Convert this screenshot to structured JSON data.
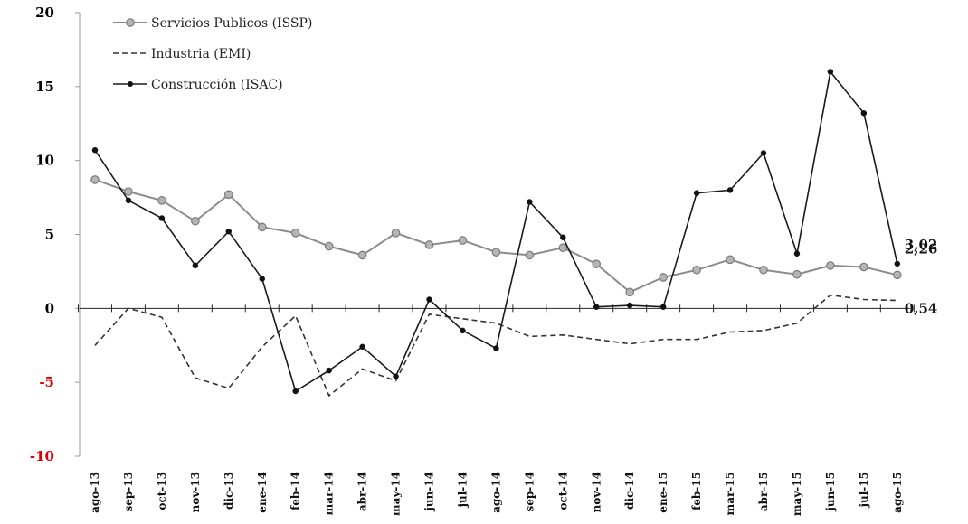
{
  "chart_data": {
    "type": "line",
    "title": "",
    "xlabel": "",
    "ylabel": "",
    "ylim": [
      -10,
      20
    ],
    "yticks": [
      {
        "value": 20,
        "label": "20",
        "color": "#000000"
      },
      {
        "value": 15,
        "label": "15",
        "color": "#000000"
      },
      {
        "value": 10,
        "label": "10",
        "color": "#000000"
      },
      {
        "value": 5,
        "label": "5",
        "color": "#000000"
      },
      {
        "value": 0,
        "label": "0",
        "color": "#000000"
      },
      {
        "value": -5,
        "label": "-5",
        "color": "#e00000"
      },
      {
        "value": -10,
        "label": "-10",
        "color": "#e00000"
      }
    ],
    "categories": [
      "ago-13",
      "sep-13",
      "oct-13",
      "nov-13",
      "dic-13",
      "ene-14",
      "feb-14",
      "mar-14",
      "abr-14",
      "may-14",
      "jun-14",
      "jul-14",
      "ago-14",
      "sep-14",
      "oct-14",
      "nov-14",
      "dic-14",
      "ene-15",
      "feb-15",
      "mar-15",
      "abr-15",
      "may-15",
      "jun-15",
      "jul-15",
      "ago-15"
    ],
    "grid": false,
    "legend_position": "top-left",
    "series": [
      {
        "name": "Servicios Publicos (ISSP)",
        "style": "solid-circle-markers",
        "color": "#8c8c8c",
        "values": [
          8.7,
          7.9,
          7.3,
          5.9,
          7.7,
          5.5,
          5.1,
          4.2,
          3.6,
          5.1,
          4.3,
          4.6,
          3.8,
          3.6,
          4.1,
          3.0,
          1.1,
          2.1,
          2.6,
          3.3,
          2.6,
          2.3,
          2.9,
          2.8,
          2.26
        ]
      },
      {
        "name": "Industria (EMI)",
        "style": "dashed",
        "color": "#333333",
        "values": [
          -2.5,
          0.0,
          -0.6,
          -4.7,
          -5.4,
          -2.6,
          -0.5,
          -5.9,
          -4.1,
          -4.9,
          -0.4,
          -0.7,
          -1.0,
          -1.9,
          -1.8,
          -2.1,
          -2.4,
          -2.1,
          -2.1,
          -1.6,
          -1.5,
          -1.0,
          0.9,
          0.6,
          0.54
        ]
      },
      {
        "name": "Construcción (ISAC)",
        "style": "solid-dot-markers",
        "color": "#1a1a1a",
        "values": [
          10.7,
          7.3,
          6.1,
          2.9,
          5.2,
          2.0,
          -5.6,
          -4.2,
          -2.6,
          -4.6,
          0.6,
          -1.5,
          -2.7,
          7.2,
          4.8,
          0.1,
          0.2,
          0.1,
          7.8,
          8.0,
          10.5,
          3.7,
          16.0,
          13.2,
          3.02
        ]
      }
    ],
    "end_labels": [
      {
        "text": "3,02",
        "value": 3.02
      },
      {
        "text": "2,26",
        "value": 2.26
      },
      {
        "text": "0,54",
        "value": 0.54
      }
    ]
  }
}
